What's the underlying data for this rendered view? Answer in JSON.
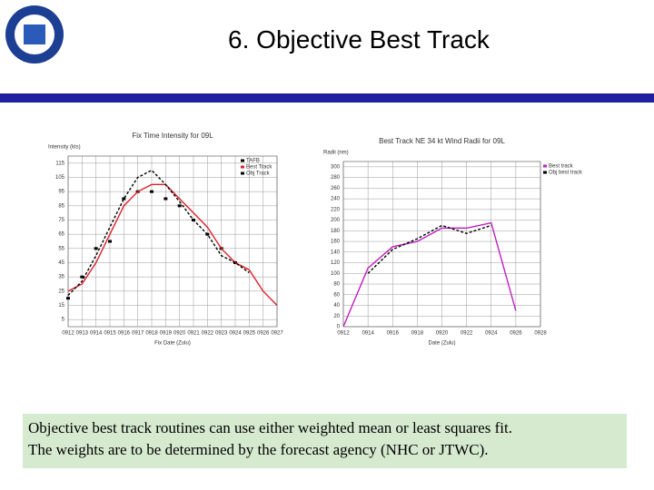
{
  "header": {
    "title": "6. Objective Best Track"
  },
  "note": {
    "lines": [
      "Objective best track routines can use either weighted mean or least squares fit.",
      "The weights are to be determined by the forecast agency (NHC or JTWC)."
    ]
  },
  "chart_data": [
    {
      "type": "line",
      "title": "Fix Time Intensity for 09L",
      "y_label": "Intensity (kts)",
      "x_label": "Fix Date (Zulu)",
      "categories": [
        "0912",
        "0913",
        "0914",
        "0915",
        "0916",
        "0917",
        "0918",
        "0919",
        "0920",
        "0921",
        "0922",
        "0923",
        "0924",
        "0925",
        "0926",
        "0927"
      ],
      "ylim": [
        0,
        120
      ],
      "yticks": [
        5,
        15,
        25,
        35,
        45,
        55,
        65,
        75,
        85,
        95,
        105,
        115
      ],
      "grid": true,
      "legend": "upper right",
      "series": [
        {
          "name": "TAFB",
          "color": "#000000",
          "markers": true,
          "values": [
            20,
            35,
            55,
            60,
            90,
            95,
            95,
            90,
            85,
            75,
            65,
            55,
            45,
            null,
            null,
            null
          ]
        },
        {
          "name": "Best Track",
          "color": "#e0202a",
          "values": [
            25,
            30,
            45,
            65,
            85,
            95,
            100,
            100,
            90,
            80,
            70,
            55,
            45,
            40,
            25,
            15
          ]
        },
        {
          "name": "Obj Track",
          "color": "#000000",
          "dashed": true,
          "values": [
            22,
            32,
            50,
            70,
            90,
            105,
            110,
            100,
            88,
            75,
            65,
            50,
            45,
            38,
            null,
            null
          ]
        }
      ]
    },
    {
      "type": "line",
      "title": "Best Track NE 34 kt Wind Radii for 09L",
      "y_label": "Radii (nm)",
      "x_label": "Date (Zulu)",
      "categories": [
        "0912",
        "0914",
        "0916",
        "0918",
        "0920",
        "0922",
        "0924",
        "0926",
        "0928"
      ],
      "ylim": [
        0,
        310
      ],
      "yticks": [
        0,
        20,
        40,
        60,
        80,
        100,
        120,
        140,
        160,
        180,
        200,
        220,
        240,
        260,
        280,
        300
      ],
      "grid": true,
      "legend": "outside right",
      "series": [
        {
          "name": "Best track",
          "color": "#c020c0",
          "values": [
            0,
            110,
            150,
            160,
            185,
            185,
            195,
            30,
            null
          ]
        },
        {
          "name": "Obj best track",
          "color": "#000000",
          "dashed": true,
          "values": [
            null,
            100,
            145,
            165,
            190,
            175,
            190,
            null,
            null
          ]
        }
      ]
    }
  ]
}
